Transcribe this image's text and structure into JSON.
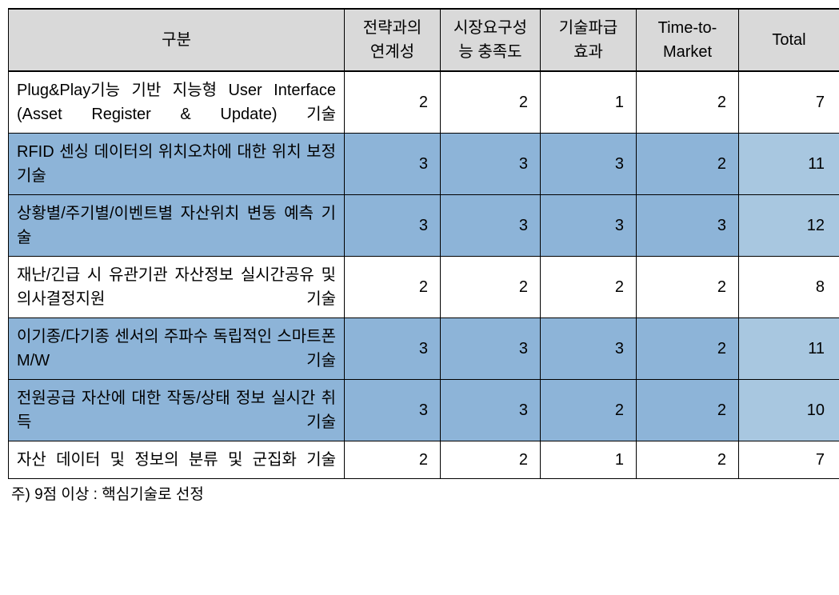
{
  "table": {
    "header": {
      "category_label": "구분",
      "col1_line1": "전략과의",
      "col1_line2": "연계성",
      "col2_line1": "시장요구성",
      "col2_line2": "능 충족도",
      "col3_line1": "기술파급",
      "col3_line2": "효과",
      "col4_line1": "Time-to-",
      "col4_line2": "Market",
      "total_label": "Total"
    },
    "rows": [
      {
        "label": "Plug&Play기능 기반 지능형 User Interface (Asset Register & Update) 기술",
        "c1": "2",
        "c2": "2",
        "c3": "1",
        "c4": "2",
        "total": "7",
        "highlighted": false
      },
      {
        "label": "RFID 센싱 데이터의 위치오차에 대한 위치 보정 기술",
        "c1": "3",
        "c2": "3",
        "c3": "3",
        "c4": "2",
        "total": "11",
        "highlighted": true
      },
      {
        "label": "상황별/주기별/이벤트별 자산위치 변동 예측 기술",
        "c1": "3",
        "c2": "3",
        "c3": "3",
        "c4": "3",
        "total": "12",
        "highlighted": true
      },
      {
        "label": "재난/긴급 시 유관기관 자산정보 실시간공유 및 의사결정지원 기술",
        "c1": "2",
        "c2": "2",
        "c3": "2",
        "c4": "2",
        "total": "8",
        "highlighted": false
      },
      {
        "label": "이기종/다기종 센서의 주파수 독립적인 스마트폰 M/W 기술",
        "c1": "3",
        "c2": "3",
        "c3": "3",
        "c4": "2",
        "total": "11",
        "highlighted": true
      },
      {
        "label": "전원공급 자산에 대한 작동/상태 정보 실시간 취득 기술",
        "c1": "3",
        "c2": "3",
        "c3": "2",
        "c4": "2",
        "total": "10",
        "highlighted": true
      },
      {
        "label": "자산 데이터 및 정보의 분류 및 군집화 기술",
        "c1": "2",
        "c2": "2",
        "c3": "1",
        "c4": "2",
        "total": "7",
        "highlighted": false
      }
    ],
    "footnote": "주) 9점 이상 : 핵심기술로 선정",
    "styles": {
      "header_bg": "#d9d9d9",
      "highlight_bg": "#8db4d8",
      "highlight_total_bg": "#a8c7e0",
      "border_color": "#000000",
      "font_size_cell": 20,
      "font_size_footnote": 19,
      "column_widths": {
        "label": 420,
        "c1": 120,
        "c2": 125,
        "c3": 120,
        "c4": 128,
        "total": 126
      }
    }
  }
}
